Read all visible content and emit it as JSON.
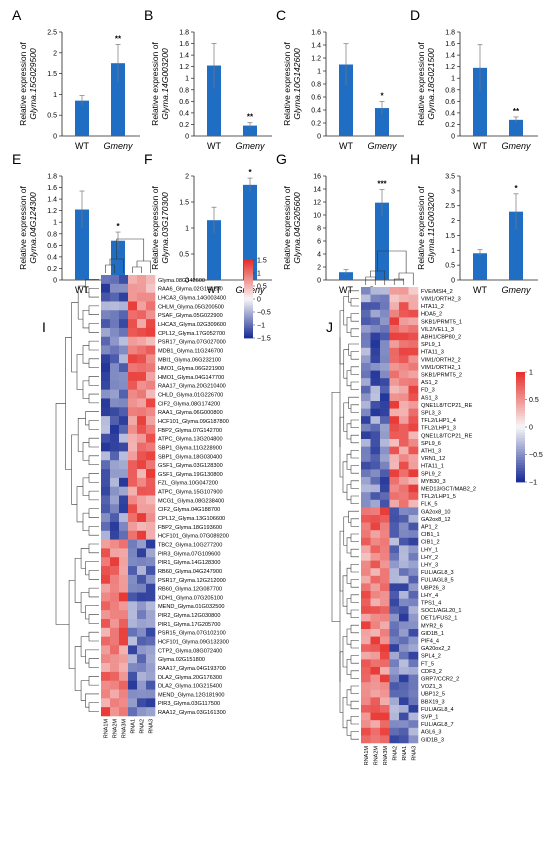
{
  "figure": {
    "bar_panels": [
      {
        "letter": "A",
        "gene": "Glyma.15G029500",
        "ymax": 2.5,
        "ticks": [
          "0",
          "0.5",
          "1",
          "1.5",
          "2",
          "2.5"
        ],
        "sig": "**"
      },
      {
        "letter": "B",
        "gene": "Glyma.14G003200",
        "ymax": 1.8,
        "ticks": [
          "0",
          "0.2",
          "0.4",
          "0.6",
          "0.8",
          "1",
          "1.2",
          "1.4",
          "1.6",
          "1.8"
        ],
        "sig": "**"
      },
      {
        "letter": "C",
        "gene": "Glyma.10G142600",
        "ymax": 1.6,
        "ticks": [
          "0",
          "0.2",
          "0.4",
          "0.6",
          "0.8",
          "1",
          "1.2",
          "1.4",
          "1.6"
        ],
        "sig": "*"
      },
      {
        "letter": "D",
        "gene": "Glyma.18G021500",
        "ymax": 1.8,
        "ticks": [
          "0",
          "0.2",
          "0.4",
          "0.6",
          "0.8",
          "1",
          "1.2",
          "1.4",
          "1.6",
          "1.8"
        ],
        "sig": "**"
      },
      {
        "letter": "E",
        "gene": "Glyma.04G124300",
        "ymax": 1.8,
        "ticks": [
          "0",
          "0.2",
          "0.4",
          "0.6",
          "0.8",
          "1",
          "1.2",
          "1.4",
          "1.6",
          "1.8"
        ],
        "sig": "*"
      },
      {
        "letter": "F",
        "gene": "Glyma.03G170300",
        "ymax": 2,
        "ticks": [
          "0",
          "0.5",
          "1",
          "1.5",
          "2"
        ],
        "sig": "*"
      },
      {
        "letter": "G",
        "gene": "Glyma.04G205600",
        "ymax": 16,
        "ticks": [
          "0",
          "2",
          "4",
          "6",
          "8",
          "10",
          "12",
          "14",
          "16"
        ],
        "sig": "***"
      },
      {
        "letter": "H",
        "gene": "Glyma.11G003200",
        "ymax": 3.5,
        "ticks": [
          "0",
          "0.5",
          "1",
          "1.5",
          "2",
          "2.5",
          "3",
          "3.5"
        ],
        "sig": "*"
      }
    ],
    "ylabel_prefix": "Relative expression of",
    "categories": [
      "WT",
      "Gmeny"
    ],
    "heatmap_I": {
      "letter": "I",
      "columns": [
        "RNA1M",
        "RNA2M",
        "RNA3M",
        "RNA1",
        "RNA2",
        "RNA3"
      ],
      "legend_labels": [
        "1.5",
        "1",
        "0.5",
        "0",
        "−0.5",
        "−1",
        "−1.5"
      ],
      "rows": [
        "Glyma.08G342600",
        "RAA6_Glyma.02G140200",
        "LHCA3_Glyma.14G003400",
        "CHLM_Glyma.05G200500",
        "PSAF_Glyma.05G022900",
        "LHCA3_Glyma.02G309600",
        "CPL12_Glyma.17G052700",
        "PSR17_Glyma.07G027000",
        "MDB1_Glyma.11G246700",
        "MBI1_Glyma.06G232100",
        "HMO1_Glyma.06G221900",
        "HMO1_Glyma.04G147700",
        "RAA17_Glyma.20G210400",
        "CHLD_Glyma.01G226700",
        "CIF2_Glyma.08G174200",
        "RAA1_Glyma.06G000800",
        "HCF101_Glyma.09G187800",
        "FBP2_Glyma.07G142700",
        "ATPC_Glyma.13G204800",
        "SBP1_Glyma.11G228900",
        "SBP1_Glyma.18G030400",
        "GSF1_Glyma.03G128300",
        "GSF1_Glyma.19G130800",
        "FZL_Glyma.10G047200",
        "ATPC_Glyma.15G107900",
        "MCG1_Glyma.08G238400",
        "CIF2_Glyma.04G188700",
        "CPL12_Glyma.13G106600",
        "FBP2_Glyma.18G193600",
        "HCF101_Glyma.07G089200",
        "TBC2_Glyma.10G277200",
        "PIR3_Glyma.07G109600",
        "PIR1_Glyma.14G128300",
        "RB60_Glyma.04G247900",
        "PSR17_Glyma.12G212000",
        "RB60_Glyma.12G087700",
        "XDH1_Glyma.07G205100",
        "MEND_Glyma.01G032500",
        "PIR2_Glyma.12G030800",
        "PIR1_Glyma.17G205700",
        "PSR15_Glyma.07G102100",
        "HCF101_Glyma.09G132300",
        "CTP2_Glyma.08G072400",
        "Glyma.02G151800",
        "RAA17_Glyma.04G193700",
        "DLA2_Glyma.20G176300",
        "DLA2_Glyma.10G215400",
        "MEND_Glyma.12G181900",
        "PIR3_Glyma.03G117500",
        "RAA12_Glyma.03G161300"
      ]
    },
    "heatmap_J": {
      "letter": "J",
      "columns": [
        "RNA1M",
        "RNA2M",
        "RNA3M",
        "RNA2",
        "RNA1",
        "RNA3"
      ],
      "legend_labels": [
        "1",
        "0.5",
        "0",
        "−0.5",
        "−1"
      ],
      "rows": [
        "FVE/MSI4_2",
        "VIM1/ORTH2_3",
        "HTA11_2",
        "HDA5_2",
        "SKB1/PRMT5_1",
        "VIL2/VEL1_3",
        "ABH1/CBP80_2",
        "SPL9_1",
        "HTA11_3",
        "VIM1/ORTH2_2",
        "VIM1/ORTH2_1",
        "SKB1/PRMT5_2",
        "AS1_2",
        "FD_3",
        "AS1_3",
        "QNE1L8/TCP21_RE",
        "SPL3_3",
        "TFL2/LHP1_4",
        "TFL2/LHP1_3",
        "QNE1L8/TCP21_RE",
        "SPL9_6",
        "ATH1_3",
        "VRN1_12",
        "HTA11_1",
        "SPL9_2",
        "MYB30_3",
        "MED13/GCT/MAB2_2",
        "TFL2/LHP1_5",
        "FLK_5",
        "GA2ox8_10",
        "GA2ox8_12",
        "AP1_2",
        "CIB1_1",
        "CIB1_2",
        "LHY_1",
        "LHY_2",
        "LHY_3",
        "FUL/AGL8_3",
        "FUL/AGL8_5",
        "UBP26_3",
        "LHY_4",
        "TPS1_4",
        "SOC1/AGL20_1",
        "DET1/FUS2_1",
        "MYR2_6",
        "GID1B_1",
        "PIF4_4",
        "GA20ox2_2",
        "SPL4_2",
        "FT_5",
        "CDF3_2",
        "GRP7/CCR2_2",
        "VOZ1_3",
        "UBP12_5",
        "BBX19_3",
        "FUL/AGL8_4",
        "SVP_1",
        "FUL/AGL8_7",
        "AGL6_3",
        "GID1B_3"
      ]
    },
    "colors": {
      "bar": "#1f6ec4",
      "high": "#e8322e",
      "mid": "#f7f7f7",
      "low": "#1c2f96"
    }
  },
  "chart_data": [
    {
      "type": "bar",
      "categories": [
        "WT",
        "Gmeny"
      ],
      "values": [
        0.85,
        1.75
      ],
      "errors": [
        0.12,
        0.45
      ],
      "ylabel": "Relative expression of Glyma.15G029500",
      "ylim": [
        0,
        2.5
      ]
    },
    {
      "type": "bar",
      "categories": [
        "WT",
        "Gmeny"
      ],
      "values": [
        1.22,
        0.18
      ],
      "errors": [
        0.38,
        0.05
      ],
      "ylabel": "Relative expression of Glyma.14G003200",
      "ylim": [
        0,
        1.8
      ]
    },
    {
      "type": "bar",
      "categories": [
        "WT",
        "Gmeny"
      ],
      "values": [
        1.1,
        0.43
      ],
      "errors": [
        0.32,
        0.1
      ],
      "ylabel": "Relative expression of Glyma.10G142600",
      "ylim": [
        0,
        1.6
      ]
    },
    {
      "type": "bar",
      "categories": [
        "WT",
        "Gmeny"
      ],
      "values": [
        1.18,
        0.28
      ],
      "errors": [
        0.4,
        0.05
      ],
      "ylabel": "Relative expression of Glyma.18G021500",
      "ylim": [
        0,
        1.8
      ]
    },
    {
      "type": "bar",
      "categories": [
        "WT",
        "Gmeny"
      ],
      "values": [
        1.22,
        0.68
      ],
      "errors": [
        0.32,
        0.15
      ],
      "ylabel": "Relative expression of Glyma.04G124300",
      "ylim": [
        0,
        1.8
      ]
    },
    {
      "type": "bar",
      "categories": [
        "WT",
        "Gmeny"
      ],
      "values": [
        1.15,
        1.83
      ],
      "errors": [
        0.25,
        0.13
      ],
      "ylabel": "Relative expression of Glyma.03G170300",
      "ylim": [
        0,
        2
      ]
    },
    {
      "type": "bar",
      "categories": [
        "WT",
        "Gmeny"
      ],
      "values": [
        1.2,
        11.9
      ],
      "errors": [
        0.4,
        2.0
      ],
      "ylabel": "Relative expression of Glyma.04G205600",
      "ylim": [
        0,
        16
      ]
    },
    {
      "type": "bar",
      "categories": [
        "WT",
        "Gmeny"
      ],
      "values": [
        0.9,
        2.3
      ],
      "errors": [
        0.12,
        0.6
      ],
      "ylabel": "Relative expression of Glyma.11G003200",
      "ylim": [
        0,
        3.5
      ]
    },
    {
      "type": "heatmap",
      "title": "",
      "columns": [
        "RNA1M",
        "RNA2M",
        "RNA3M",
        "RNA1",
        "RNA2",
        "RNA3"
      ],
      "clusters": [
        "upper block: low in RNA1M–RNA3M, high in RNA1–RNA3",
        "lower block: high in RNA1M–RNA3M, low in RNA1–RNA3"
      ],
      "zlim": [
        -1.5,
        1.5
      ]
    },
    {
      "type": "heatmap",
      "title": "",
      "columns": [
        "RNA1M",
        "RNA2M",
        "RNA3M",
        "RNA2",
        "RNA1",
        "RNA3"
      ],
      "clusters": [
        "upper block: low in RNA1M–RNA3M, high in RNA2–RNA3",
        "lower block: high in RNA1M–RNA3M, low in RNA2–RNA3"
      ],
      "zlim": [
        -1,
        1
      ]
    }
  ]
}
